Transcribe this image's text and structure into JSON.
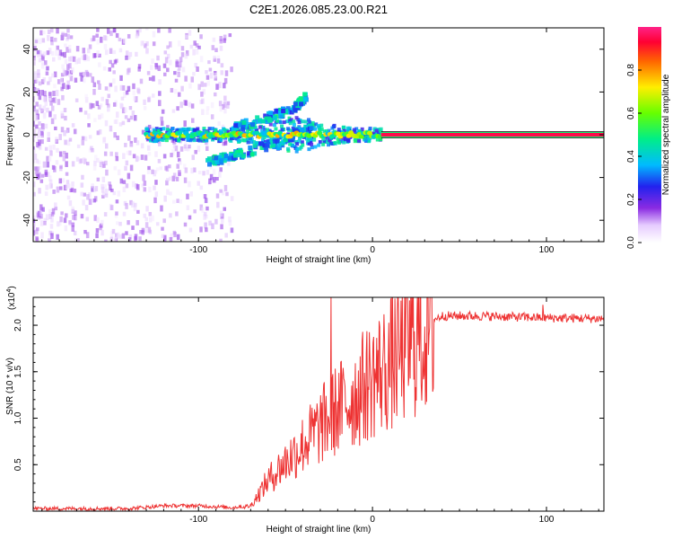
{
  "title": "C2E1.2026.085.23.00.R21",
  "chart_data": [
    {
      "type": "heatmap",
      "name": "spectrogram",
      "xlabel": "Height of straight line (km)",
      "ylabel": "Frequency (Hz)",
      "xlim": [
        -195,
        133
      ],
      "ylim": [
        -50,
        50
      ],
      "xticks": [
        -100,
        0,
        100
      ],
      "yticks": [
        -40,
        -20,
        0,
        20,
        40
      ],
      "colorbar": {
        "label": "Normalized spectral amplitude",
        "range": [
          0,
          1
        ],
        "ticks": [
          0.0,
          0.2,
          0.4,
          0.6,
          0.8
        ],
        "tick_labels": [
          "0.0",
          "0.2",
          "0.4",
          "0.6",
          "0.8"
        ]
      },
      "features": {
        "carrier_line": {
          "frequency_hz": 0,
          "x_start": 5,
          "x_end": 133,
          "amplitude": 0.95
        },
        "mid_band": {
          "x_start": -130,
          "x_end": 5,
          "frequency_hz": 0,
          "amplitude": 0.6
        },
        "upper_branch": {
          "x": [
            -80,
            -60,
            -45,
            -38
          ],
          "frequency_hz": [
            3,
            8,
            12,
            18
          ]
        },
        "lower_branch": {
          "x": [
            -95,
            -80,
            -60,
            -45,
            -35
          ],
          "frequency_hz": [
            -13,
            -10,
            -5,
            0,
            3
          ]
        },
        "scatter_region": {
          "x_start": -195,
          "x_end": -80,
          "frequency_range_hz": [
            -50,
            50
          ],
          "amplitude": 0.1
        }
      }
    },
    {
      "type": "line",
      "name": "snr",
      "xlabel": "Height of straight line (km)",
      "ylabel": "SNR (10 * v/v)",
      "y_scale_label": "(x10",
      "y_scale_exponent": "4",
      "xlim": [
        -195,
        133
      ],
      "ylim": [
        0,
        2.3
      ],
      "xticks": [
        -100,
        0,
        100
      ],
      "yticks": [
        0.5,
        1.0,
        1.5,
        2.0
      ],
      "ytick_labels": [
        "0.5",
        "1.0",
        "1.5",
        "2.0"
      ],
      "color": "#ee3333",
      "envelope_x": [
        -195,
        -140,
        -120,
        -100,
        -80,
        -70,
        -60,
        -50,
        -40,
        -30,
        -20,
        -10,
        0,
        10,
        20,
        30,
        40,
        60,
        80,
        100,
        133
      ],
      "envelope_y": [
        0.02,
        0.02,
        0.05,
        0.05,
        0.03,
        0.06,
        0.35,
        0.55,
        0.75,
        0.95,
        1.15,
        1.3,
        1.5,
        1.65,
        1.85,
        2.02,
        2.1,
        2.1,
        2.09,
        2.08,
        2.07
      ],
      "spikes": [
        {
          "x": -24,
          "y": 2.3
        },
        {
          "x": 98,
          "y": 2.22
        }
      ]
    }
  ]
}
